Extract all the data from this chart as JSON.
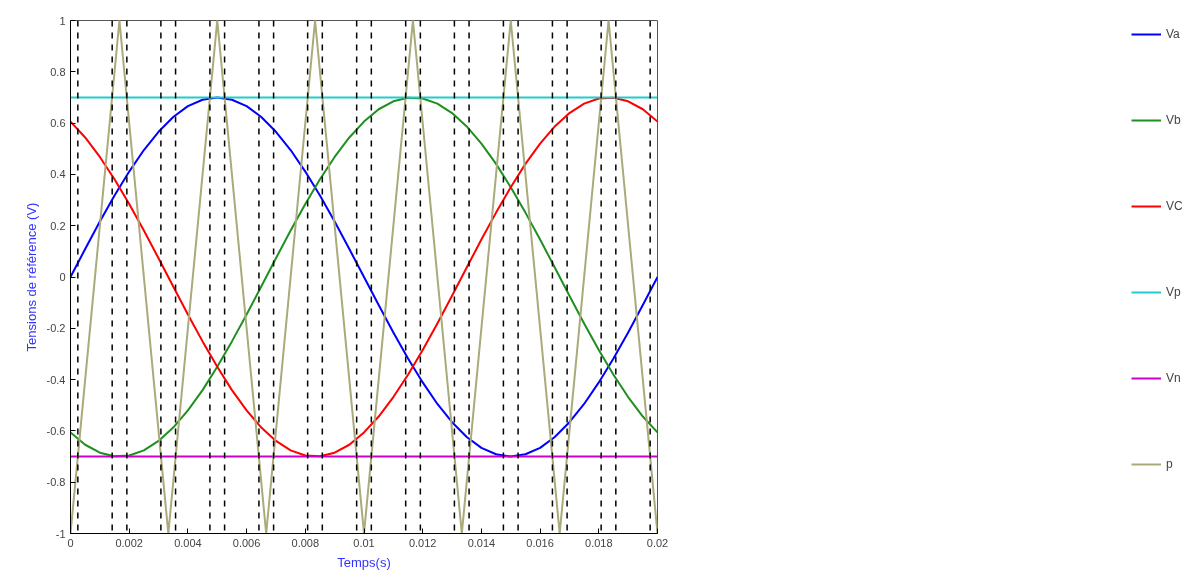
{
  "chart_data": {
    "type": "line",
    "xlabel": "Temps(s)",
    "ylabel": "Tensions de référence (V)",
    "x": [
      0,
      0.0005,
      0.001,
      0.0015,
      0.002,
      0.0025,
      0.003,
      0.0035,
      0.004,
      0.0045,
      0.005,
      0.0055,
      0.006,
      0.0065,
      0.007,
      0.0075,
      0.008,
      0.0085,
      0.009,
      0.0095,
      0.01,
      0.0105,
      0.011,
      0.0115,
      0.012,
      0.0125,
      0.013,
      0.0135,
      0.014,
      0.0145,
      0.015,
      0.0155,
      0.016,
      0.0165,
      0.017,
      0.0175,
      0.018,
      0.0185,
      0.019,
      0.0195,
      0.02
    ],
    "series": [
      {
        "name": "Va",
        "color": "#0000ff",
        "values": [
          0,
          0.109,
          0.216,
          0.318,
          0.411,
          0.495,
          0.566,
          0.624,
          0.666,
          0.691,
          0.7,
          0.691,
          0.666,
          0.624,
          0.566,
          0.495,
          0.411,
          0.318,
          0.216,
          0.109,
          0,
          -0.109,
          -0.216,
          -0.318,
          -0.411,
          -0.495,
          -0.566,
          -0.624,
          -0.666,
          -0.691,
          -0.7,
          -0.691,
          -0.666,
          -0.624,
          -0.566,
          -0.495,
          -0.411,
          -0.318,
          -0.216,
          -0.109,
          0
        ]
      },
      {
        "name": "Vb",
        "color": "#1f8f1f",
        "values": [
          -0.606,
          -0.654,
          -0.685,
          -0.699,
          -0.696,
          -0.676,
          -0.639,
          -0.587,
          -0.52,
          -0.441,
          -0.35,
          -0.251,
          -0.146,
          -0.037,
          0.073,
          0.181,
          0.285,
          0.381,
          0.468,
          0.544,
          0.606,
          0.654,
          0.685,
          0.699,
          0.696,
          0.676,
          0.639,
          0.587,
          0.52,
          0.441,
          0.35,
          0.251,
          0.146,
          0.037,
          -0.073,
          -0.181,
          -0.285,
          -0.381,
          -0.468,
          -0.544,
          -0.606
        ]
      },
      {
        "name": "VC",
        "color": "#ff0000",
        "values": [
          0.606,
          0.544,
          0.468,
          0.381,
          0.285,
          0.181,
          0.073,
          -0.037,
          -0.146,
          -0.251,
          -0.35,
          -0.441,
          -0.52,
          -0.587,
          -0.639,
          -0.676,
          -0.696,
          -0.699,
          -0.685,
          -0.654,
          -0.606,
          -0.544,
          -0.468,
          -0.381,
          -0.285,
          -0.181,
          -0.073,
          0.037,
          0.146,
          0.251,
          0.35,
          0.441,
          0.52,
          0.587,
          0.639,
          0.676,
          0.696,
          0.699,
          0.685,
          0.654,
          0.606
        ]
      },
      {
        "name": "Vp",
        "color": "#22cccc",
        "x": [
          0,
          0.02
        ],
        "values": [
          0.7,
          0.7
        ]
      },
      {
        "name": "Vn",
        "color": "#cc00cc",
        "x": [
          0,
          0.02
        ],
        "values": [
          -0.7,
          -0.7
        ]
      },
      {
        "name": "p",
        "color": "#aaaa7a",
        "x": [
          0,
          0.001667,
          0.003333,
          0.005,
          0.006667,
          0.008333,
          0.01,
          0.011667,
          0.013333,
          0.015,
          0.016667,
          0.018333,
          0.02
        ],
        "values": [
          -1,
          1,
          -1,
          1,
          -1,
          1,
          -1,
          1,
          -1,
          1,
          -1,
          1,
          -1
        ]
      }
    ],
    "ref_lines": [
      {
        "axis": "x",
        "value": 0.00025,
        "color": "#000000",
        "line_style": "dashed"
      },
      {
        "axis": "x",
        "value": 0.00142,
        "color": "#000000",
        "line_style": "dashed"
      },
      {
        "axis": "x",
        "value": 0.00192,
        "color": "#000000",
        "line_style": "dashed"
      },
      {
        "axis": "x",
        "value": 0.00308,
        "color": "#000000",
        "line_style": "dashed"
      },
      {
        "axis": "x",
        "value": 0.00358,
        "color": "#000000",
        "line_style": "dashed"
      },
      {
        "axis": "x",
        "value": 0.00475,
        "color": "#000000",
        "line_style": "dashed"
      },
      {
        "axis": "x",
        "value": 0.00525,
        "color": "#000000",
        "line_style": "dashed"
      },
      {
        "axis": "x",
        "value": 0.00642,
        "color": "#000000",
        "line_style": "dashed"
      },
      {
        "axis": "x",
        "value": 0.00692,
        "color": "#000000",
        "line_style": "dashed"
      },
      {
        "axis": "x",
        "value": 0.00808,
        "color": "#000000",
        "line_style": "dashed"
      },
      {
        "axis": "x",
        "value": 0.00858,
        "color": "#000000",
        "line_style": "dashed"
      },
      {
        "axis": "x",
        "value": 0.00975,
        "color": "#000000",
        "line_style": "dashed"
      },
      {
        "axis": "x",
        "value": 0.01025,
        "color": "#000000",
        "line_style": "dashed"
      },
      {
        "axis": "x",
        "value": 0.01142,
        "color": "#000000",
        "line_style": "dashed"
      },
      {
        "axis": "x",
        "value": 0.01192,
        "color": "#000000",
        "line_style": "dashed"
      },
      {
        "axis": "x",
        "value": 0.01308,
        "color": "#000000",
        "line_style": "dashed"
      },
      {
        "axis": "x",
        "value": 0.01358,
        "color": "#000000",
        "line_style": "dashed"
      },
      {
        "axis": "x",
        "value": 0.01475,
        "color": "#000000",
        "line_style": "dashed"
      },
      {
        "axis": "x",
        "value": 0.01525,
        "color": "#000000",
        "line_style": "dashed"
      },
      {
        "axis": "x",
        "value": 0.01642,
        "color": "#000000",
        "line_style": "dashed"
      },
      {
        "axis": "x",
        "value": 0.01692,
        "color": "#000000",
        "line_style": "dashed"
      },
      {
        "axis": "x",
        "value": 0.01808,
        "color": "#000000",
        "line_style": "dashed"
      },
      {
        "axis": "x",
        "value": 0.01858,
        "color": "#000000",
        "line_style": "dashed"
      },
      {
        "axis": "x",
        "value": 0.01975,
        "color": "#000000",
        "line_style": "dashed"
      }
    ],
    "xlim": [
      0,
      0.02
    ],
    "xticks": [
      0,
      0.002,
      0.004,
      0.006,
      0.008,
      0.01,
      0.012,
      0.014,
      0.016,
      0.018,
      0.02
    ],
    "ylim": [
      -1,
      1
    ],
    "yticks": [
      -1,
      -0.8,
      -0.6,
      -0.4,
      -0.2,
      0,
      0.2,
      0.4,
      0.6,
      0.8,
      1
    ],
    "grid": false,
    "legend": "right",
    "marker": "none",
    "line_style": "solid"
  }
}
